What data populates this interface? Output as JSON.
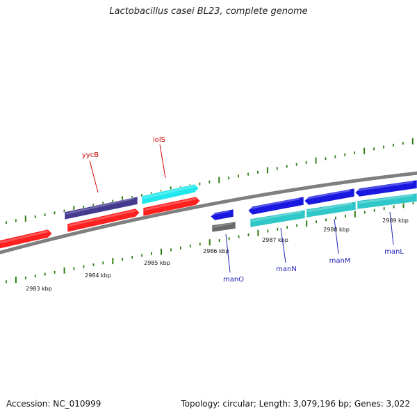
{
  "title": "Lactobacillus casei BL23, complete genome",
  "footer": {
    "accession": "Accession: NC_010999",
    "summary": "Topology: circular; Length: 3,079,196 bp; Genes: 3,022"
  },
  "colors": {
    "backbone": "#7f7f7f",
    "tick": "#2e7d12",
    "label_red": "#cc0000",
    "label_blue": "#1f1fb8",
    "red": "#ff2020",
    "cyan": "#22e8ee",
    "teal": "#2fc7c7",
    "blue": "#1818e0",
    "navy": "#443b8f",
    "gray": "#6a6a6a"
  },
  "scale_labels": [
    "2983 kbp",
    "2984 kbp",
    "2985 kbp",
    "2986 kbp",
    "2987 kbp",
    "2988 kbp",
    "2989 kbp"
  ],
  "genes": [
    {
      "name": "",
      "color": "red"
    },
    {
      "name": "yycB",
      "color": "navy"
    },
    {
      "name": "",
      "color": "red"
    },
    {
      "name": "iolS",
      "color": "cyan"
    },
    {
      "name": "",
      "color": "red"
    },
    {
      "name": "manO",
      "color": "blue"
    },
    {
      "name": "",
      "color": "gray"
    },
    {
      "name": "manN",
      "color": "blue"
    },
    {
      "name": "",
      "color": "teal"
    },
    {
      "name": "manM",
      "color": "blue"
    },
    {
      "name": "",
      "color": "teal"
    },
    {
      "name": "manL",
      "color": "blue"
    },
    {
      "name": "",
      "color": "teal"
    }
  ]
}
